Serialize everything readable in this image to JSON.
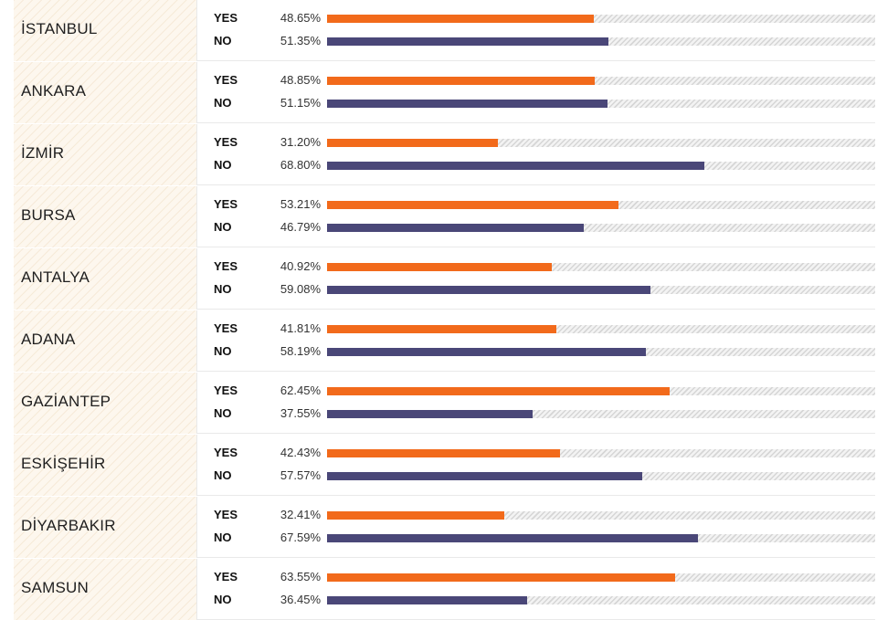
{
  "colors": {
    "yes": "#f26a1b",
    "no": "#4a4778"
  },
  "chart_data": {
    "type": "bar",
    "orientation": "horizontal",
    "xlim": [
      0,
      100
    ],
    "grid": false,
    "categories": [
      "İSTANBUL",
      "ANKARA",
      "İZMİR",
      "BURSA",
      "ANTALYA",
      "ADANA",
      "GAZİANTEP",
      "ESKİŞEHİR",
      "DİYARBAKIR",
      "SAMSUN"
    ],
    "series": [
      {
        "name": "YES",
        "color": "#f26a1b",
        "values": [
          48.65,
          48.85,
          31.2,
          53.21,
          40.92,
          41.81,
          62.45,
          42.43,
          32.41,
          63.55
        ],
        "labels": [
          "48.65%",
          "48.85%",
          "31.20%",
          "53.21%",
          "40.92%",
          "41.81%",
          "62.45%",
          "42.43%",
          "32.41%",
          "63.55%"
        ]
      },
      {
        "name": "NO",
        "color": "#4a4778",
        "values": [
          51.35,
          51.15,
          68.8,
          46.79,
          59.08,
          58.19,
          37.55,
          57.57,
          67.59,
          36.45
        ],
        "labels": [
          "51.35%",
          "51.15%",
          "68.80%",
          "46.79%",
          "59.08%",
          "58.19%",
          "37.55%",
          "57.57%",
          "67.59%",
          "36.45%"
        ]
      }
    ]
  }
}
